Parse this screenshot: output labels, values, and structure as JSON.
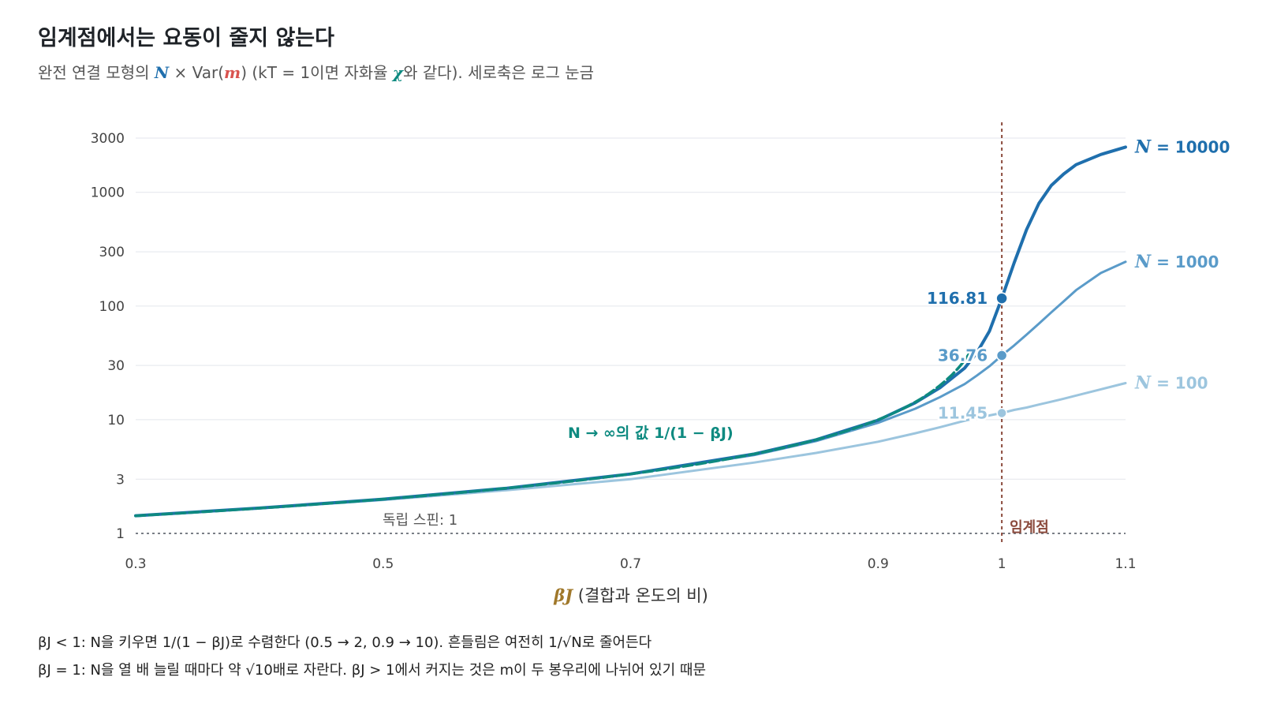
{
  "title": "임계점에서는 요동이 줄지 않는다",
  "subtitle": {
    "prefix": "완전 연결 모형의 ",
    "sym_n": "N",
    "times": " × Var(",
    "sym_m": "m",
    "mid": ") (kT = 1이면 자화율 ",
    "sym_chi": "χ",
    "suffix": "와 같다). 세로축은 로그 눈금"
  },
  "colors": {
    "n10000": "#1f6fad",
    "n1000": "#5a9bc9",
    "n100": "#9cc5de",
    "limit": "#0e8a80",
    "critical": "#8b4a3c",
    "grid": "#e3e6ec",
    "axis_text": "#444444",
    "xlabel_symbol": "#a0782a"
  },
  "chart_data": {
    "type": "line",
    "title": "임계점에서는 요동이 줄지 않는다",
    "xlabel_symbol": "βJ",
    "xlabel_text": " (결합과 온도의 비)",
    "ylabel": "",
    "x_scale": "linear",
    "y_scale": "log",
    "xlim": [
      0.3,
      1.1
    ],
    "ylim": [
      1,
      3000
    ],
    "x_ticks": [
      0.3,
      0.5,
      0.7,
      0.9,
      1,
      1.1
    ],
    "x_tick_labels": [
      "0.3",
      "0.5",
      "0.7",
      "0.9",
      "1",
      "1.1"
    ],
    "y_ticks": [
      1,
      3,
      10,
      30,
      100,
      300,
      1000,
      3000
    ],
    "y_tick_labels": [
      "1",
      "3",
      "10",
      "30",
      "100",
      "300",
      "1000",
      "3000"
    ],
    "grid": "horizontal",
    "x": [
      0.3,
      0.4,
      0.5,
      0.6,
      0.7,
      0.8,
      0.85,
      0.9,
      0.93,
      0.95,
      0.97,
      0.98,
      0.99,
      1.0,
      1.01,
      1.02,
      1.03,
      1.04,
      1.05,
      1.06,
      1.08,
      1.1
    ],
    "series": [
      {
        "name": "N = 10000",
        "key": "n10000",
        "values": [
          1.43,
          1.67,
          2.0,
          2.5,
          3.33,
          5.0,
          6.67,
          9.9,
          14.1,
          19.1,
          28.5,
          39.0,
          60.0,
          116.81,
          240,
          470,
          800,
          1150,
          1450,
          1750,
          2150,
          2500
        ]
      },
      {
        "name": "N = 1000",
        "key": "n1000",
        "values": [
          1.43,
          1.67,
          2.0,
          2.5,
          3.33,
          4.9,
          6.5,
          9.4,
          12.5,
          15.8,
          20.6,
          24.5,
          29.5,
          36.76,
          45.0,
          56.0,
          70.0,
          88.0,
          110.0,
          138.0,
          195.0,
          245.0
        ]
      },
      {
        "name": "N = 100",
        "key": "n100",
        "values": [
          1.43,
          1.66,
          1.97,
          2.4,
          3.0,
          4.2,
          5.1,
          6.4,
          7.6,
          8.6,
          9.8,
          10.4,
          10.9,
          11.45,
          12.2,
          12.8,
          13.6,
          14.4,
          15.3,
          16.3,
          18.5,
          21.0
        ]
      }
    ],
    "limit_series": {
      "name": "N → ∞의 값 1/(1 − βJ)",
      "key": "limit",
      "x_end": 0.975
    },
    "critical_point": {
      "x": 1,
      "label": "임계점"
    },
    "baseline": {
      "y": 1,
      "label": "독립 스핀: 1"
    },
    "point_labels": [
      {
        "series": "n10000",
        "x": 1,
        "y": 116.81,
        "text": "116.81"
      },
      {
        "series": "n1000",
        "x": 1,
        "y": 36.76,
        "text": "36.76"
      },
      {
        "series": "n100",
        "x": 1,
        "y": 11.45,
        "text": "11.45"
      }
    ],
    "end_labels": [
      {
        "series": "n10000",
        "sym": "N",
        "text": " = 10000"
      },
      {
        "series": "n1000",
        "sym": "N",
        "text": " = 1000"
      },
      {
        "series": "n100",
        "sym": "N",
        "text": " = 100"
      }
    ]
  },
  "footnotes": [
    "βJ < 1: N을 키우면 1/(1 − βJ)로 수렴한다 (0.5 → 2, 0.9 → 10). 흔들림은 여전히 1/√N로 줄어든다",
    "βJ = 1: N을 열 배 늘릴 때마다 약 √10배로 자란다. βJ > 1에서 커지는 것은 m이 두 봉우리에 나뉘어 있기 때문"
  ]
}
